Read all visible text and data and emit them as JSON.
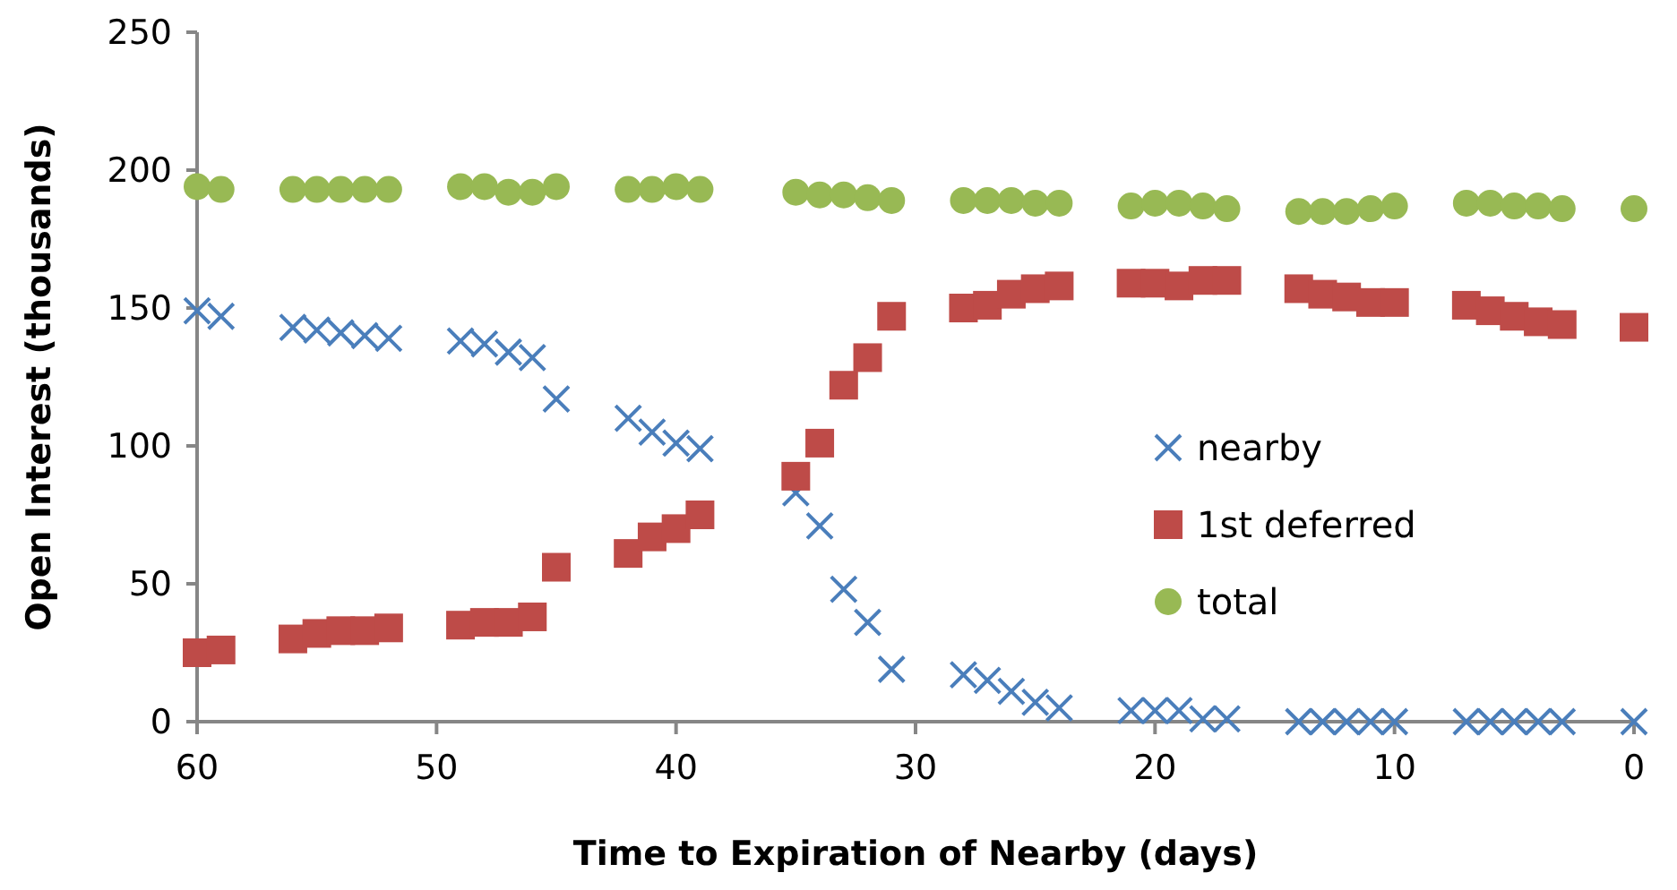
{
  "chart_data": {
    "type": "scatter",
    "xlabel": "Time to Expiration of Nearby (days)",
    "ylabel": "Open Interest (thousands)",
    "x": [
      60,
      59,
      56,
      55,
      54,
      53,
      52,
      49,
      48,
      47,
      46,
      45,
      42,
      41,
      40,
      39,
      35,
      34,
      33,
      32,
      31,
      28,
      27,
      26,
      25,
      24,
      21,
      20,
      19,
      18,
      17,
      14,
      13,
      12,
      11,
      10,
      7,
      6,
      5,
      4,
      3,
      0
    ],
    "xlim": [
      60,
      0
    ],
    "xticks": [
      60,
      50,
      40,
      30,
      20,
      10,
      0
    ],
    "ylim": [
      0,
      250
    ],
    "yticks": [
      0,
      50,
      100,
      150,
      200,
      250
    ],
    "grid": false,
    "legend": "right",
    "series": [
      {
        "name": "nearby",
        "color": "#4a7ebb",
        "marker": "cross",
        "values": [
          149,
          147,
          143,
          142,
          141,
          140,
          139,
          138,
          137,
          134,
          132,
          117,
          110,
          105,
          101,
          99,
          83,
          71,
          48,
          36,
          19,
          17,
          15,
          11,
          7,
          5,
          4,
          4,
          4,
          1,
          1,
          0,
          0,
          0,
          0,
          0,
          0,
          0,
          0,
          0,
          0,
          0
        ]
      },
      {
        "name": "1st deferred",
        "color": "#be4b48",
        "marker": "square",
        "values": [
          25,
          26,
          30,
          32,
          33,
          33,
          34,
          35,
          36,
          36,
          38,
          56,
          61,
          67,
          70,
          75,
          89,
          101,
          122,
          132,
          147,
          150,
          151,
          155,
          157,
          158,
          159,
          159,
          158,
          160,
          160,
          157,
          155,
          154,
          152,
          152,
          151,
          149,
          147,
          145,
          144,
          143
        ]
      },
      {
        "name": "total",
        "color": "#98b954",
        "marker": "circle",
        "values": [
          194,
          193,
          193,
          193,
          193,
          193,
          193,
          194,
          194,
          192,
          192,
          194,
          193,
          193,
          194,
          193,
          192,
          191,
          191,
          190,
          189,
          189,
          189,
          189,
          188,
          188,
          187,
          188,
          188,
          187,
          186,
          185,
          185,
          185,
          186,
          187,
          188,
          188,
          187,
          187,
          186,
          186
        ]
      }
    ]
  }
}
